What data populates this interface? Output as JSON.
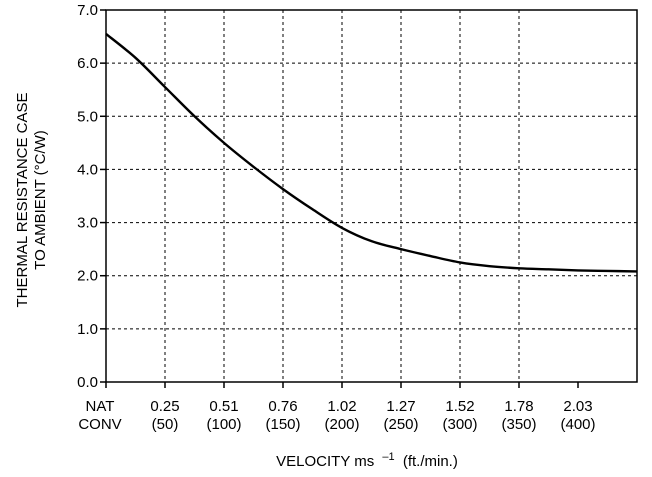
{
  "chart_data": {
    "type": "line",
    "title": "",
    "ylabel_lines": [
      "THERMAL RESISTANCE CASE",
      "TO AMBIENT (°C/W)"
    ],
    "xlabel": "VELOCITY ms",
    "xlabel_sup": "–1",
    "xlabel_tail": "(ft./min.)",
    "xlim": [
      0,
      9
    ],
    "ylim": [
      0,
      7
    ],
    "grid": true,
    "y_ticks": [
      "0.0",
      "1.0",
      "2.0",
      "3.0",
      "4.0",
      "5.0",
      "6.0",
      "7.0"
    ],
    "x_ticks": [
      {
        "line1": "NAT",
        "line2": "CONV"
      },
      {
        "line1": "0.25",
        "line2": "(50)"
      },
      {
        "line1": "0.51",
        "line2": "(100)"
      },
      {
        "line1": "0.76",
        "line2": "(150)"
      },
      {
        "line1": "1.02",
        "line2": "(200)"
      },
      {
        "line1": "1.27",
        "line2": "(250)"
      },
      {
        "line1": "1.52",
        "line2": "(300)"
      },
      {
        "line1": "1.78",
        "line2": "(350)"
      },
      {
        "line1": "2.03",
        "line2": "(400)"
      }
    ],
    "series": [
      {
        "x": [
          0,
          0.5,
          1,
          1.5,
          2,
          2.5,
          3,
          3.5,
          4,
          4.5,
          5,
          5.5,
          6,
          6.5,
          7,
          7.5,
          8,
          8.5,
          9
        ],
        "y": [
          6.55,
          6.1,
          5.55,
          5.0,
          4.5,
          4.05,
          3.63,
          3.25,
          2.9,
          2.65,
          2.5,
          2.37,
          2.25,
          2.18,
          2.14,
          2.12,
          2.1,
          2.09,
          2.08
        ]
      }
    ]
  }
}
